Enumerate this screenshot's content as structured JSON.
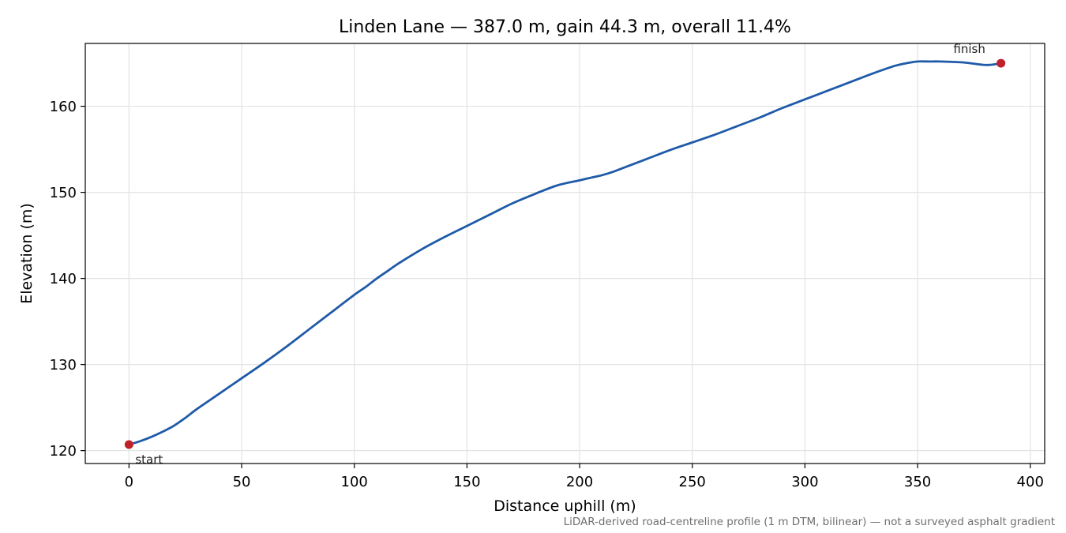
{
  "chart_data": {
    "type": "line",
    "title": "Linden Lane — 387.0 m, gain 44.3 m, overall 11.4%",
    "xlabel": "Distance uphill (m)",
    "ylabel": "Elevation (m)",
    "xlim": [
      -19.4,
      406.4
    ],
    "ylim": [
      118.5,
      167.3
    ],
    "xticks": [
      0,
      50,
      100,
      150,
      200,
      250,
      300,
      350,
      400
    ],
    "yticks": [
      120,
      130,
      140,
      150,
      160
    ],
    "grid": true,
    "line_color": "#1f5aa8",
    "marker_color": "#c0202a",
    "series": [
      {
        "x": [
          0,
          5,
          10,
          15,
          20,
          25,
          30,
          40,
          50,
          60,
          70,
          80,
          90,
          100,
          105,
          110,
          115,
          120,
          130,
          140,
          150,
          160,
          170,
          180,
          190,
          200,
          205,
          210,
          215,
          220,
          230,
          240,
          250,
          260,
          270,
          280,
          290,
          300,
          310,
          320,
          330,
          340,
          345,
          350,
          355,
          360,
          370,
          380,
          385,
          387
        ],
        "y": [
          120.7,
          121.1,
          121.6,
          122.2,
          122.9,
          123.8,
          124.8,
          126.6,
          128.4,
          130.2,
          132.1,
          134.1,
          136.1,
          138.1,
          139.0,
          140.0,
          140.9,
          141.8,
          143.4,
          144.8,
          146.1,
          147.4,
          148.7,
          149.8,
          150.8,
          151.4,
          151.7,
          152.0,
          152.4,
          152.9,
          153.9,
          154.9,
          155.8,
          156.7,
          157.7,
          158.7,
          159.8,
          160.8,
          161.8,
          162.8,
          163.8,
          164.7,
          165.0,
          165.2,
          165.2,
          165.2,
          165.1,
          164.8,
          164.9,
          165.0
        ]
      }
    ],
    "markers": [
      {
        "label": "start",
        "x": 0,
        "y": 120.7
      },
      {
        "label": "finish",
        "x": 387.0,
        "y": 165.0
      }
    ]
  },
  "footnote": "LiDAR-derived road-centreline profile (1 m DTM, bilinear) — not a surveyed asphalt gradient"
}
